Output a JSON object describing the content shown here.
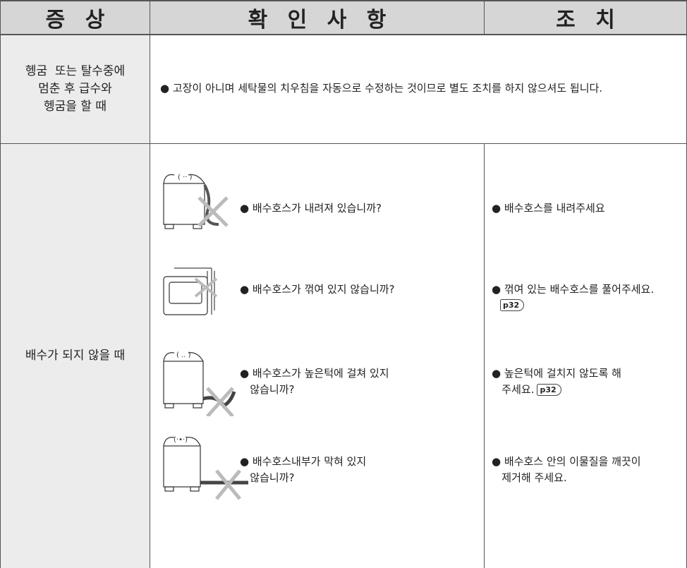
{
  "header": [
    "증 상",
    "확 인 사 항",
    "조 치"
  ],
  "rows": [
    {
      "symptom": [
        "헹굼  또는 탈수중에",
        "멈춘 후 급수와",
        "헹굼을 할 때"
      ],
      "check": "● 고장이 아니며 세탁물의 치우침을 자동으로 수정하는 것이므로 별도 조치를 하지 않으셔도 됩니다."
    },
    {
      "symptom": [
        "배수가 되지 않을 때"
      ],
      "items": [
        {
          "check": [
            "● 배수호스가 내려져 있습니까?"
          ],
          "action": [
            "● 배수호스를 내려주세요"
          ]
        },
        {
          "check": [
            "● 배수호스가 꺾여 있지 않습니까?"
          ],
          "action": [
            "● 꺾여 있는 배수호스를 풀어주세요."
          ],
          "ref": "p32"
        },
        {
          "check": [
            "● 배수호스가 높은턱에 걸쳐 있지",
            "   않습니까?"
          ],
          "action": [
            "● 높은턱에 걸치지 않도록 해",
            "   주세요."
          ],
          "ref": "p32"
        },
        {
          "check": [
            "● 배수호스내부가 막혀 있지",
            "   않습니까?"
          ],
          "action": [
            "● 배수호스 안의 이물질을 깨끗이",
            "   제거해 주세요."
          ]
        }
      ]
    }
  ]
}
